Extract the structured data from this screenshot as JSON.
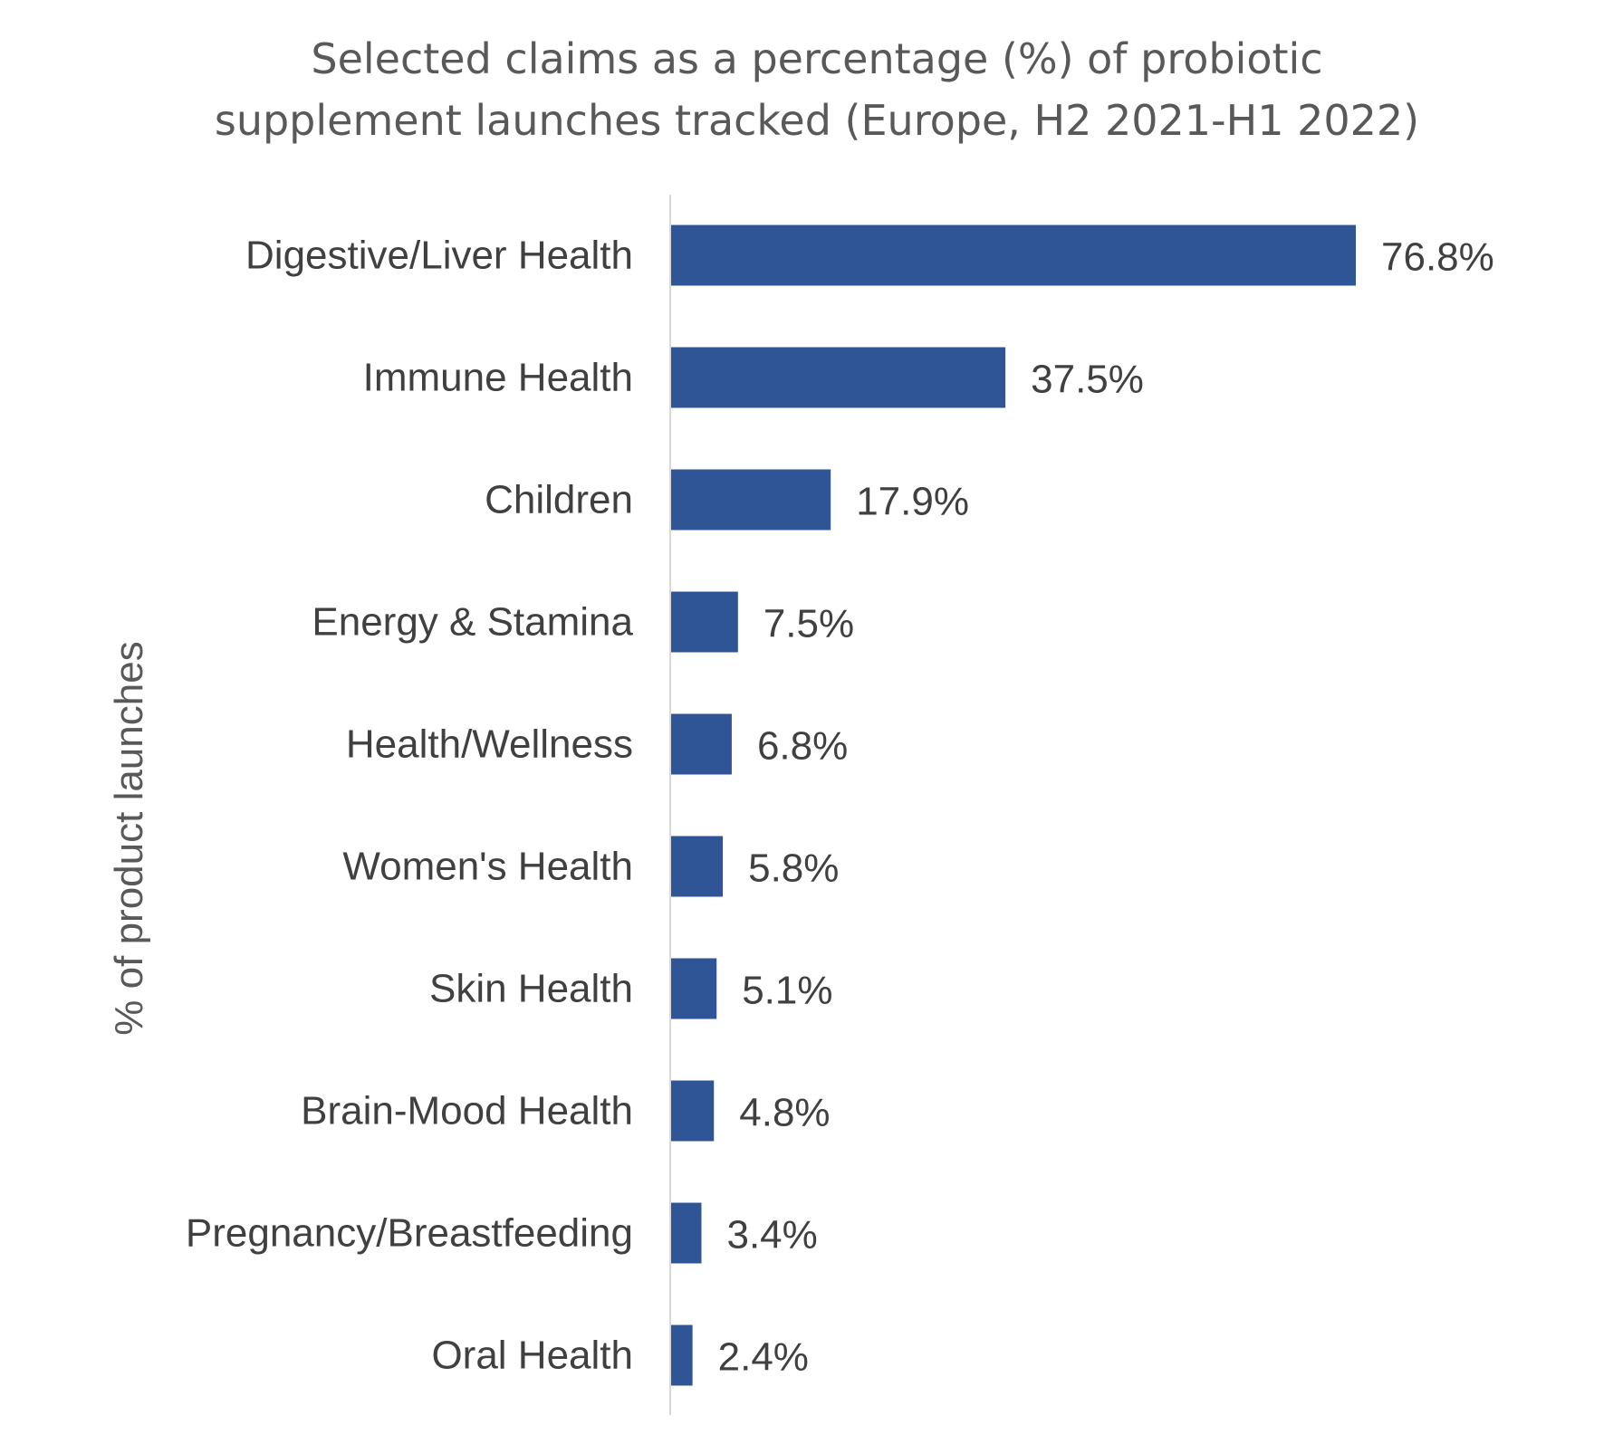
{
  "chart_data": {
    "type": "bar",
    "orientation": "horizontal",
    "title_lines": [
      "Selected claims as a percentage (%) of probiotic",
      "supplement launches tracked (Europe, H2 2021-H1 2022)"
    ],
    "ylabel": "% of product launches",
    "xlabel": "",
    "categories": [
      "Digestive/Liver Health",
      "Immune Health",
      "Children",
      "Energy & Stamina",
      "Health/Wellness",
      "Women's Health",
      "Skin Health",
      "Brain-Mood Health",
      "Pregnancy/Breastfeeding",
      "Oral Health"
    ],
    "values": [
      76.8,
      37.5,
      17.9,
      7.5,
      6.8,
      5.8,
      5.1,
      4.8,
      3.4,
      2.4
    ],
    "value_labels": [
      "76.8%",
      "37.5%",
      "17.9%",
      "7.5%",
      "6.8%",
      "5.8%",
      "5.1%",
      "4.8%",
      "3.4%",
      "2.4%"
    ],
    "xlim": [
      0,
      100
    ],
    "grid": false,
    "legend": "none",
    "colors": {
      "bar": "#2F5597",
      "axis_line": "#D9D9D9",
      "text": "#404040",
      "title": "#595959"
    }
  }
}
